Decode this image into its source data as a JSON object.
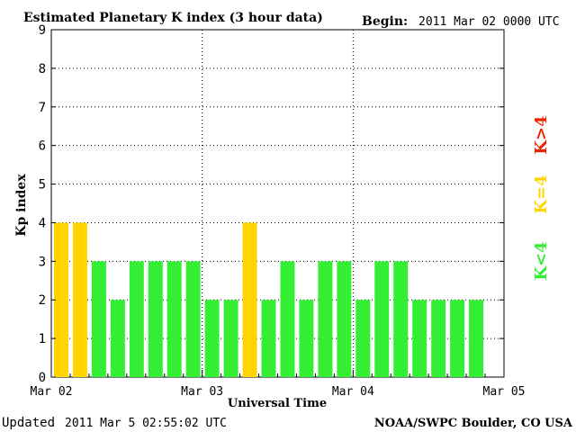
{
  "header": {
    "title": "Estimated Planetary K index (3 hour data)",
    "begin_label": "Begin:",
    "begin_value": "2011 Mar 02 0000 UTC"
  },
  "footer": {
    "updated_label": "Updated",
    "updated_value": "2011 Mar  5 02:55:02 UTC",
    "credit": "NOAA/SWPC Boulder, CO USA"
  },
  "legend": {
    "items": [
      {
        "label": "K<4",
        "color": "#33ee33"
      },
      {
        "label": "K=4",
        "color": "#ffd400"
      },
      {
        "label": "K>4",
        "color": "#ee2200"
      }
    ]
  },
  "colors": {
    "low": "#33ee33",
    "equal": "#ffd400",
    "high": "#ee2200"
  },
  "chart_data": {
    "type": "bar",
    "title": "Estimated Planetary K index (3 hour data)",
    "xlabel": "Universal Time",
    "ylabel": "Kp index",
    "ylim": [
      0,
      9
    ],
    "yticks": [
      0,
      1,
      2,
      3,
      4,
      5,
      6,
      7,
      8,
      9
    ],
    "xticks": [
      "Mar 02",
      "Mar 03",
      "Mar 04",
      "Mar 05"
    ],
    "grid": true,
    "legend_position": "right",
    "series": [
      {
        "values": [
          4,
          4,
          3,
          2,
          3,
          3,
          3,
          3,
          2,
          2,
          4,
          2,
          3,
          2,
          3,
          3,
          2,
          3,
          3,
          2,
          2,
          2,
          2
        ]
      }
    ]
  }
}
